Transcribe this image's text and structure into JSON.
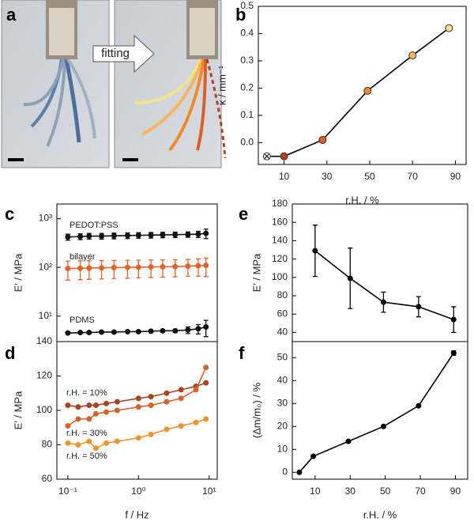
{
  "panel_labels": [
    "a",
    "b",
    "c",
    "d",
    "e",
    "f"
  ],
  "photo_annotation": "fitting",
  "chart_data": [
    {
      "type": "line",
      "xlabel": "r.H. / %",
      "ylabel": "κ / mm⁻¹",
      "xlim": [
        -2,
        95
      ],
      "xticks": [
        10,
        30,
        50,
        70,
        90
      ],
      "ylim": [
        -0.08,
        0.5
      ],
      "yticks": [
        {
          "value": 0,
          "label": "0.0"
        },
        0.1,
        0.2,
        0.3,
        0.4,
        0.5
      ],
      "x": [
        2,
        10,
        28,
        49,
        70,
        87
      ],
      "series": [
        {
          "color": "#000000",
          "marker_colors": [
            "#ffffff",
            "#b0401e",
            "#d8612a",
            "#ef8a2d",
            "#f5b55e",
            "#f4e38e"
          ],
          "values": [
            -0.05,
            -0.05,
            0.01,
            0.19,
            0.32,
            0.42
          ]
        }
      ]
    },
    {
      "type": "line",
      "ylabel": "E′ / MPa",
      "yscale": "log",
      "xscale": "log",
      "xlim": [
        0.07,
        13
      ],
      "ylim": [
        3,
        2000
      ],
      "yticks": [
        {
          "value": 10,
          "label": "10¹"
        },
        {
          "value": 100,
          "label": "10²"
        },
        {
          "value": 1000,
          "label": "10³"
        }
      ],
      "x": [
        0.1,
        0.15,
        0.2,
        0.3,
        0.45,
        0.7,
        1,
        1.5,
        2.2,
        3.3,
        5,
        7,
        9
      ],
      "series": [
        {
          "name": "PEDOT:PSS",
          "color": "#111111",
          "values": [
            420,
            430,
            440,
            440,
            445,
            450,
            455,
            460,
            465,
            470,
            475,
            480,
            500
          ],
          "errors": [
            60,
            60,
            60,
            60,
            60,
            60,
            60,
            60,
            60,
            60,
            60,
            70,
            110
          ]
        },
        {
          "name": "bilayer",
          "color": "#e2622a",
          "values": [
            95,
            96,
            97,
            98,
            99,
            100,
            101,
            102,
            103,
            104,
            106,
            108,
            110
          ],
          "errors": [
            40,
            40,
            40,
            40,
            40,
            40,
            40,
            40,
            40,
            40,
            40,
            42,
            45
          ]
        },
        {
          "name": "PDMS",
          "color": "#111111",
          "values": [
            4.5,
            4.6,
            4.6,
            4.7,
            4.7,
            4.8,
            4.8,
            4.9,
            5,
            5,
            5.2,
            5.5,
            6
          ],
          "errors": [
            0.2,
            0.2,
            0.2,
            0.2,
            0.2,
            0.2,
            0.2,
            0.3,
            0.3,
            0.4,
            0.8,
            1.2,
            2.2
          ]
        }
      ]
    },
    {
      "type": "line",
      "xlabel": "f / Hz",
      "ylabel": "E′ / MPa",
      "xscale": "log",
      "xlim": [
        0.07,
        13
      ],
      "xticks": [
        {
          "value": 0.1,
          "label": "10⁻¹"
        },
        {
          "value": 1,
          "label": "10⁰"
        },
        {
          "value": 10,
          "label": "10¹"
        }
      ],
      "ylim": [
        60,
        140
      ],
      "yticks": [
        60,
        80,
        100,
        120,
        140
      ],
      "x": [
        0.1,
        0.14,
        0.2,
        0.25,
        0.35,
        0.5,
        1,
        1.5,
        2.5,
        4,
        6.5,
        9
      ],
      "series": [
        {
          "name": "r.H. = 10%",
          "color": "#a8431f",
          "values": [
            103,
            102,
            103,
            103,
            104,
            105,
            107,
            108,
            110,
            112,
            114,
            116
          ]
        },
        {
          "name": "r.H. = 30%",
          "color": "#d5622a",
          "values": [
            91,
            95,
            95,
            98,
            99,
            100,
            102,
            103,
            105,
            107,
            112,
            125
          ]
        },
        {
          "name": "r.H. = 50%",
          "color": "#f0922e",
          "values": [
            81,
            80,
            82,
            78,
            81,
            82,
            84,
            86,
            89,
            91,
            93,
            95
          ]
        }
      ]
    },
    {
      "type": "line",
      "ylabel": "E′ / MPa",
      "xlim": [
        -3,
        97
      ],
      "ylim": [
        30,
        180
      ],
      "yticks": [
        40,
        60,
        80,
        100,
        120,
        140,
        160,
        180
      ],
      "x": [
        10,
        30,
        49,
        69,
        89
      ],
      "series": [
        {
          "color": "#000000",
          "values": [
            129,
            99,
            73,
            68,
            54
          ],
          "errors": [
            28,
            33,
            11,
            11,
            14
          ]
        }
      ]
    },
    {
      "type": "line",
      "xlabel": "r.H. / %",
      "ylabel": "(Δm/m₀) / %",
      "xlim": [
        -3,
        97
      ],
      "xticks": [
        10,
        30,
        50,
        70,
        90
      ],
      "ylim": [
        -3,
        57
      ],
      "yticks": [
        0,
        10,
        20,
        30,
        40,
        50
      ],
      "x": [
        1,
        9,
        29,
        49,
        69,
        89
      ],
      "series": [
        {
          "color": "#000000",
          "values": [
            0,
            7,
            13.5,
            20,
            29,
            52
          ],
          "errors": [
            0,
            0,
            0,
            0,
            0,
            1
          ]
        }
      ]
    }
  ]
}
